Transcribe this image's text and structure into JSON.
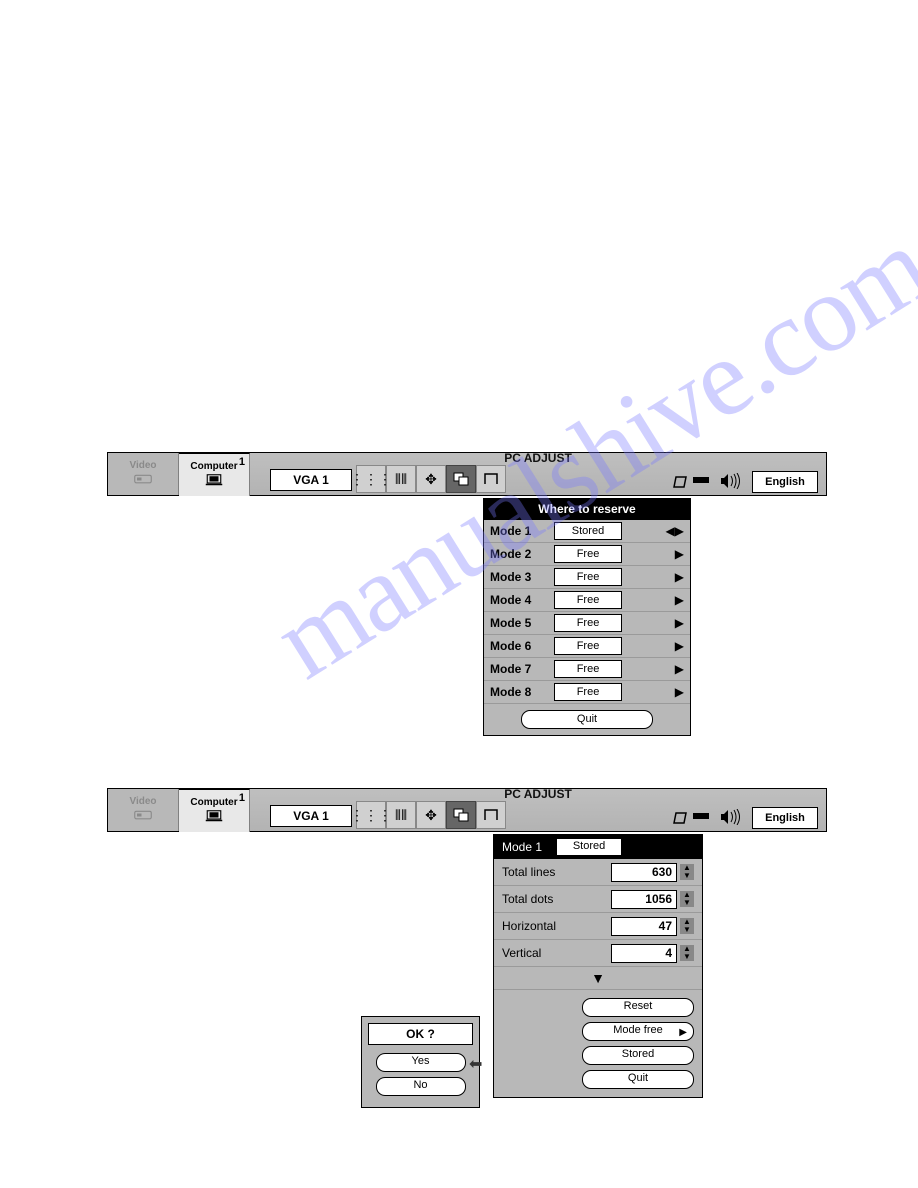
{
  "watermark": "manualshive.com",
  "menubar": {
    "title": "PC ADJUST",
    "tab_video": "Video",
    "tab_computer": "Computer",
    "computer_num": "1",
    "vga": "VGA 1",
    "english": "English"
  },
  "reserve": {
    "header": "Where to reserve",
    "modes": [
      {
        "label": "Mode 1",
        "status": "Stored",
        "selected": true
      },
      {
        "label": "Mode 2",
        "status": "Free",
        "selected": false
      },
      {
        "label": "Mode 3",
        "status": "Free",
        "selected": false
      },
      {
        "label": "Mode 4",
        "status": "Free",
        "selected": false
      },
      {
        "label": "Mode 5",
        "status": "Free",
        "selected": false
      },
      {
        "label": "Mode 6",
        "status": "Free",
        "selected": false
      },
      {
        "label": "Mode 7",
        "status": "Free",
        "selected": false
      },
      {
        "label": "Mode 8",
        "status": "Free",
        "selected": false
      }
    ],
    "quit": "Quit"
  },
  "adjust": {
    "mode_label": "Mode 1",
    "mode_status": "Stored",
    "params": [
      {
        "label": "Total lines",
        "value": "630"
      },
      {
        "label": "Total dots",
        "value": "1056"
      },
      {
        "label": "Horizontal",
        "value": "47"
      },
      {
        "label": "Vertical",
        "value": "4"
      }
    ],
    "buttons": {
      "reset": "Reset",
      "mode_free": "Mode free",
      "stored": "Stored",
      "quit": "Quit"
    }
  },
  "ok": {
    "title": "OK ?",
    "yes": "Yes",
    "no": "No"
  },
  "colors": {
    "panel_bg": "#b8b8b8",
    "bar_bg": "#b3b3b3",
    "white": "#ffffff",
    "black": "#000000"
  }
}
